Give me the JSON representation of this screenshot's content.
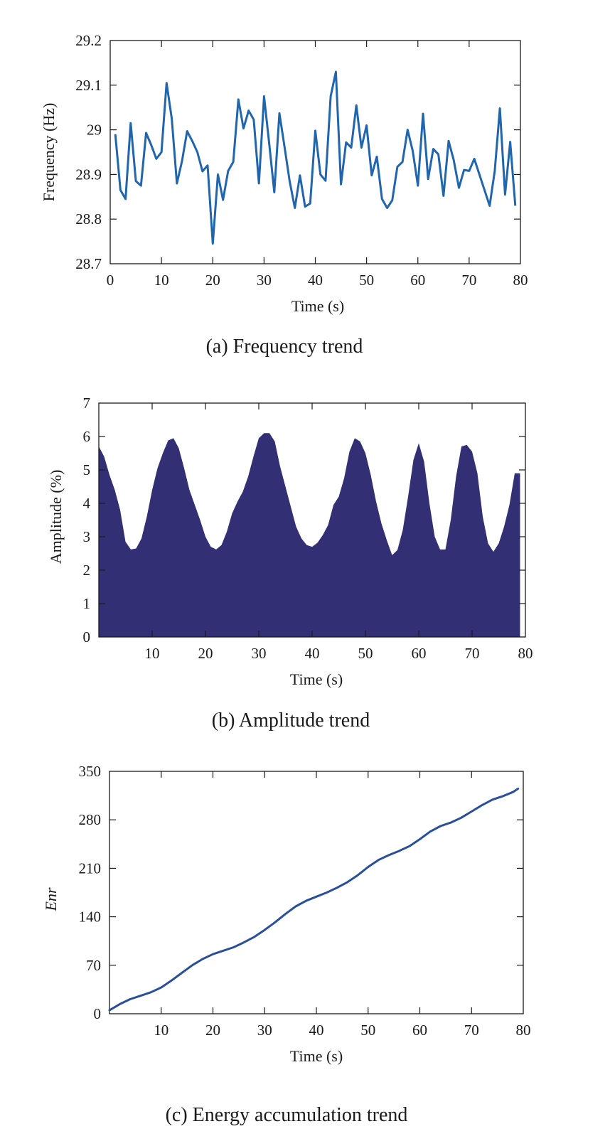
{
  "chart_data": [
    {
      "type": "line",
      "caption": "(a) Frequency trend",
      "xlabel": "Time (s)",
      "ylabel": "Frequency (Hz)",
      "xlim": [
        0,
        80
      ],
      "ylim": [
        28.7,
        29.2
      ],
      "xticks": [
        "0",
        "10",
        "20",
        "30",
        "40",
        "50",
        "60",
        "70",
        "80"
      ],
      "yticks": [
        "28.7",
        "28.8",
        "28.9",
        "29",
        "29.1",
        "29.2"
      ],
      "color": "#2166ac",
      "x": [
        1,
        2,
        3,
        4,
        5,
        6,
        7,
        8,
        9,
        10,
        11,
        12,
        13,
        14,
        15,
        16,
        17,
        18,
        19,
        20,
        21,
        22,
        23,
        24,
        25,
        26,
        27,
        28,
        29,
        30,
        31,
        32,
        33,
        34,
        35,
        36,
        37,
        38,
        39,
        40,
        41,
        42,
        43,
        44,
        45,
        46,
        47,
        48,
        49,
        50,
        51,
        52,
        53,
        54,
        55,
        56,
        57,
        58,
        59,
        60,
        61,
        62,
        63,
        64,
        65,
        66,
        67,
        68,
        69,
        70,
        71,
        72,
        73,
        74,
        75,
        76,
        77,
        78,
        79
      ],
      "y": [
        28.99,
        28.865,
        28.845,
        29.015,
        28.885,
        28.875,
        28.993,
        28.966,
        28.935,
        28.95,
        29.105,
        29.025,
        28.88,
        28.93,
        28.997,
        28.975,
        28.95,
        28.907,
        28.92,
        28.745,
        28.9,
        28.843,
        28.908,
        28.928,
        29.068,
        29.003,
        29.043,
        29.023,
        28.88,
        29.075,
        28.97,
        28.86,
        29.037,
        28.962,
        28.885,
        28.825,
        28.898,
        28.828,
        28.835,
        28.998,
        28.9,
        28.886,
        29.075,
        29.13,
        28.878,
        28.972,
        28.96,
        29.055,
        28.96,
        29.01,
        28.898,
        28.94,
        28.845,
        28.825,
        28.842,
        28.917,
        28.928,
        29.0,
        28.953,
        28.875,
        29.036,
        28.89,
        28.957,
        28.945,
        28.852,
        28.975,
        28.932,
        28.87,
        28.91,
        28.908,
        28.935,
        28.9,
        28.865,
        28.83,
        28.908,
        29.048,
        28.855,
        28.973,
        28.83
      ]
    },
    {
      "type": "area",
      "caption": "(b) Amplitude trend",
      "xlabel": "Time (s)",
      "ylabel": "Amplitude (%)",
      "xlim": [
        0,
        80
      ],
      "ylim": [
        0,
        7
      ],
      "xticks": [
        "10",
        "20",
        "30",
        "40",
        "50",
        "60",
        "70",
        "80"
      ],
      "yticks": [
        "0",
        "1",
        "2",
        "3",
        "4",
        "5",
        "6",
        "7"
      ],
      "color": "#332f75",
      "x": [
        0,
        1,
        2,
        3,
        4,
        5,
        6,
        7,
        8,
        9,
        10,
        11,
        12,
        13,
        14,
        15,
        16,
        17,
        18,
        19,
        20,
        21,
        22,
        23,
        24,
        25,
        26,
        27,
        28,
        29,
        30,
        31,
        32,
        33,
        34,
        35,
        36,
        37,
        38,
        39,
        40,
        41,
        42,
        43,
        44,
        45,
        46,
        47,
        48,
        49,
        50,
        51,
        52,
        53,
        54,
        55,
        56,
        57,
        58,
        59,
        60,
        61,
        62,
        63,
        64,
        65,
        66,
        67,
        68,
        69,
        70,
        71,
        72,
        73,
        74,
        75,
        76,
        77,
        78,
        79
      ],
      "y": [
        5.7,
        5.4,
        4.85,
        4.4,
        3.8,
        2.85,
        2.62,
        2.65,
        2.95,
        3.6,
        4.4,
        5.05,
        5.5,
        5.88,
        5.95,
        5.65,
        5.05,
        4.4,
        3.95,
        3.5,
        3.0,
        2.7,
        2.62,
        2.75,
        3.15,
        3.7,
        4.05,
        4.35,
        4.8,
        5.4,
        5.95,
        6.1,
        6.1,
        5.85,
        5.1,
        4.5,
        3.9,
        3.3,
        2.95,
        2.75,
        2.7,
        2.82,
        3.05,
        3.35,
        3.95,
        4.2,
        4.75,
        5.55,
        5.95,
        5.85,
        5.5,
        4.85,
        4.05,
        3.4,
        2.9,
        2.45,
        2.6,
        3.2,
        4.2,
        5.3,
        5.8,
        5.25,
        4.0,
        3.0,
        2.62,
        2.62,
        3.5,
        4.8,
        5.7,
        5.75,
        5.55,
        4.9,
        3.6,
        2.8,
        2.55,
        2.8,
        3.3,
        3.95,
        4.9,
        4.9
      ]
    },
    {
      "type": "line",
      "caption": "(c) Energy accumulation trend",
      "xlabel": "Time (s)",
      "ylabel": "Enr",
      "xlim": [
        0,
        80
      ],
      "ylim": [
        0,
        350
      ],
      "xticks": [
        "10",
        "20",
        "30",
        "40",
        "50",
        "60",
        "70",
        "80"
      ],
      "yticks": [
        "0",
        "70",
        "140",
        "210",
        "280",
        "350"
      ],
      "color": "#2a4f9a",
      "x": [
        0,
        2,
        4,
        6,
        8,
        10,
        12,
        14,
        16,
        18,
        20,
        22,
        24,
        26,
        28,
        30,
        32,
        34,
        36,
        38,
        40,
        42,
        44,
        46,
        48,
        50,
        52,
        54,
        56,
        58,
        60,
        62,
        64,
        66,
        68,
        70,
        72,
        74,
        76,
        78,
        79
      ],
      "y": [
        5,
        14,
        21,
        26,
        31,
        38,
        48,
        59,
        70,
        79,
        86,
        91,
        96,
        103,
        111,
        121,
        132,
        144,
        155,
        163,
        169,
        175,
        182,
        190,
        200,
        212,
        222,
        229,
        235,
        242,
        252,
        263,
        271,
        276,
        283,
        292,
        301,
        309,
        314,
        320,
        325
      ]
    }
  ]
}
